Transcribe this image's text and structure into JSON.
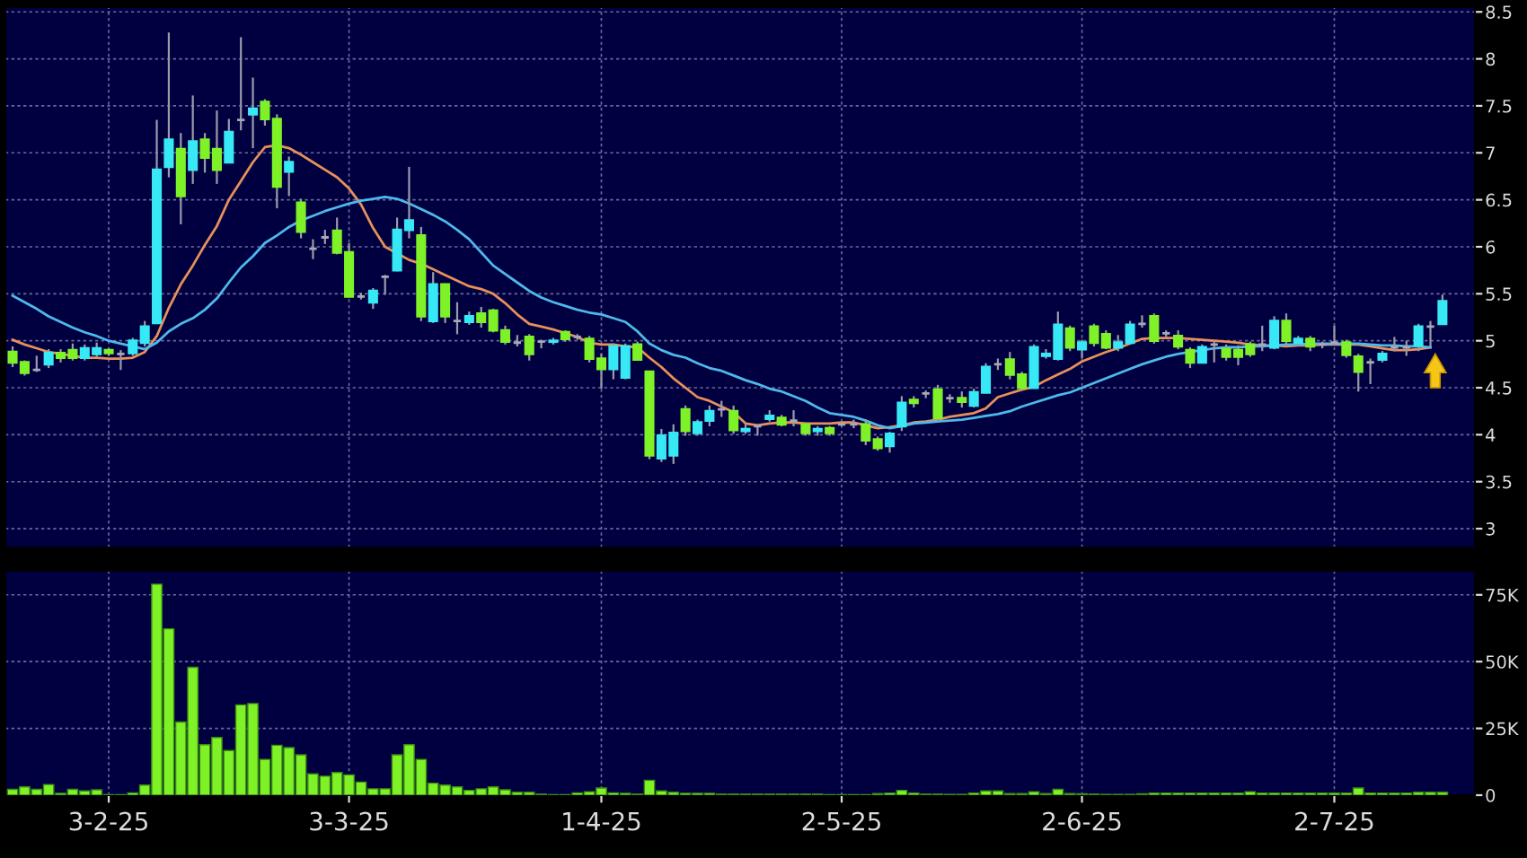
{
  "chart_data": [
    {
      "type": "candlestick",
      "categories": [
        null,
        null,
        null,
        null,
        null,
        null,
        null,
        null,
        null,
        null,
        null,
        null,
        null,
        null,
        null,
        null,
        null,
        null,
        null,
        null,
        null,
        null,
        null,
        null,
        null,
        null,
        null,
        null,
        null,
        null,
        null,
        null,
        null,
        null,
        null,
        null,
        null,
        null,
        null,
        null,
        null,
        null,
        null,
        null,
        null,
        null,
        null,
        null,
        null,
        null,
        null,
        null,
        null,
        null,
        null,
        null,
        null,
        null,
        null,
        null,
        null,
        null,
        null,
        null,
        null,
        null,
        null,
        null,
        null,
        null,
        null,
        null,
        null,
        null,
        null,
        null,
        null,
        null,
        null,
        null,
        null,
        null,
        null,
        null,
        null,
        null,
        null,
        null,
        null,
        null,
        null,
        null,
        null,
        null,
        null,
        null,
        null,
        null,
        null,
        null,
        null,
        null,
        null,
        null,
        null,
        null,
        null,
        null,
        null,
        null,
        null,
        null,
        null,
        null,
        null,
        null,
        null,
        null,
        null,
        null
      ],
      "series": [
        {
          "type": "candlestick",
          "ohlc": [
            [
              4.88,
              4.93,
              4.73,
              4.77
            ],
            [
              4.77,
              4.78,
              4.64,
              4.66
            ],
            [
              4.69,
              4.83,
              4.68,
              4.69
            ],
            [
              4.75,
              4.9,
              4.72,
              4.87
            ],
            [
              4.87,
              4.9,
              4.78,
              4.82
            ],
            [
              4.9,
              4.96,
              4.8,
              4.82
            ],
            [
              4.82,
              4.95,
              4.8,
              4.92
            ],
            [
              4.86,
              4.97,
              4.84,
              4.92
            ],
            [
              4.9,
              4.91,
              4.85,
              4.87
            ],
            [
              4.86,
              4.89,
              4.7,
              4.86
            ],
            [
              4.87,
              5.02,
              4.85,
              5.0
            ],
            [
              4.98,
              5.2,
              4.95,
              5.15
            ],
            [
              5.19,
              7.34,
              5.19,
              6.82
            ],
            [
              6.85,
              8.27,
              6.75,
              7.14
            ],
            [
              7.04,
              7.2,
              6.25,
              6.54
            ],
            [
              6.82,
              7.6,
              6.68,
              7.12
            ],
            [
              7.14,
              7.2,
              6.8,
              6.95
            ],
            [
              7.04,
              7.44,
              6.68,
              6.82
            ],
            [
              6.9,
              7.35,
              6.9,
              7.22
            ],
            [
              7.35,
              8.22,
              7.25,
              7.35
            ],
            [
              7.41,
              7.79,
              7.06,
              7.47
            ],
            [
              7.54,
              7.56,
              7.3,
              7.36
            ],
            [
              7.36,
              7.4,
              6.42,
              6.64
            ],
            [
              6.8,
              6.95,
              6.55,
              6.9
            ],
            [
              6.47,
              6.5,
              6.1,
              6.16
            ],
            [
              5.98,
              6.07,
              5.88,
              5.98
            ],
            [
              6.1,
              6.17,
              6.04,
              6.1
            ],
            [
              6.17,
              6.3,
              5.93,
              5.94
            ],
            [
              5.94,
              6.03,
              5.47,
              5.47
            ],
            [
              5.47,
              5.5,
              5.45,
              5.47
            ],
            [
              5.41,
              5.55,
              5.35,
              5.53
            ],
            [
              5.68,
              5.69,
              5.5,
              5.68
            ],
            [
              5.75,
              6.3,
              5.75,
              6.18
            ],
            [
              6.18,
              6.84,
              6.1,
              6.28
            ],
            [
              6.12,
              6.2,
              5.22,
              5.26
            ],
            [
              5.21,
              5.72,
              5.2,
              5.6
            ],
            [
              5.6,
              5.6,
              5.2,
              5.26
            ],
            [
              5.21,
              5.4,
              5.08,
              5.21
            ],
            [
              5.2,
              5.3,
              5.18,
              5.26
            ],
            [
              5.29,
              5.35,
              5.15,
              5.2
            ],
            [
              5.32,
              5.33,
              5.1,
              5.11
            ],
            [
              5.11,
              5.15,
              4.97,
              4.99
            ],
            [
              4.98,
              5.05,
              4.95,
              4.98
            ],
            [
              5.04,
              5.06,
              4.8,
              4.86
            ],
            [
              4.99,
              5.0,
              4.93,
              4.99
            ],
            [
              4.99,
              5.02,
              4.97,
              5.0
            ],
            [
              5.09,
              5.1,
              5.0,
              5.02
            ],
            [
              5.04,
              5.06,
              5.02,
              5.04
            ],
            [
              5.02,
              5.04,
              4.78,
              4.81
            ],
            [
              4.81,
              4.85,
              4.5,
              4.7
            ],
            [
              4.7,
              4.96,
              4.6,
              4.94
            ],
            [
              4.61,
              4.96,
              4.6,
              4.94
            ],
            [
              4.96,
              4.98,
              4.8,
              4.8
            ],
            [
              4.67,
              4.67,
              3.75,
              3.78
            ],
            [
              3.75,
              4.05,
              3.72,
              3.99
            ],
            [
              3.78,
              4.1,
              3.7,
              4.02
            ],
            [
              4.27,
              4.3,
              4.0,
              4.04
            ],
            [
              4.02,
              4.15,
              4.0,
              4.13
            ],
            [
              4.15,
              4.3,
              4.1,
              4.25
            ],
            [
              4.27,
              4.35,
              4.2,
              4.27
            ],
            [
              4.25,
              4.3,
              4.02,
              4.05
            ],
            [
              4.04,
              4.1,
              4.02,
              4.06
            ],
            [
              4.09,
              4.1,
              4.0,
              4.09
            ],
            [
              4.17,
              4.25,
              4.15,
              4.2
            ],
            [
              4.18,
              4.2,
              4.1,
              4.11
            ],
            [
              4.15,
              4.25,
              4.1,
              4.15
            ],
            [
              4.11,
              4.12,
              4.0,
              4.02
            ],
            [
              4.04,
              4.08,
              4.0,
              4.06
            ],
            [
              4.07,
              4.08,
              4.0,
              4.02
            ],
            [
              4.11,
              4.12,
              4.1,
              4.11
            ],
            [
              4.11,
              4.15,
              4.08,
              4.11
            ],
            [
              4.11,
              4.15,
              3.9,
              3.94
            ],
            [
              3.95,
              3.97,
              3.84,
              3.86
            ],
            [
              3.88,
              4.02,
              3.82,
              4.01
            ],
            [
              4.09,
              4.4,
              4.05,
              4.34
            ],
            [
              4.37,
              4.4,
              4.3,
              4.34
            ],
            [
              4.44,
              4.46,
              4.4,
              4.44
            ],
            [
              4.48,
              4.52,
              4.15,
              4.18
            ],
            [
              4.39,
              4.42,
              4.35,
              4.39
            ],
            [
              4.39,
              4.45,
              4.3,
              4.35
            ],
            [
              4.31,
              4.48,
              4.3,
              4.45
            ],
            [
              4.45,
              4.75,
              4.45,
              4.72
            ],
            [
              4.75,
              4.8,
              4.7,
              4.75
            ],
            [
              4.8,
              4.87,
              4.6,
              4.64
            ],
            [
              4.64,
              4.66,
              4.48,
              4.5
            ],
            [
              4.5,
              4.95,
              4.5,
              4.93
            ],
            [
              4.84,
              4.9,
              4.82,
              4.86
            ],
            [
              4.81,
              5.3,
              4.8,
              5.17
            ],
            [
              5.13,
              5.15,
              4.9,
              4.93
            ],
            [
              4.91,
              5.0,
              4.82,
              4.98
            ],
            [
              5.15,
              5.17,
              4.95,
              4.98
            ],
            [
              5.07,
              5.1,
              4.92,
              4.93
            ],
            [
              4.93,
              5.05,
              4.9,
              4.98
            ],
            [
              4.98,
              5.2,
              4.97,
              5.17
            ],
            [
              5.18,
              5.26,
              5.15,
              5.18
            ],
            [
              5.26,
              5.28,
              4.98,
              5.0
            ],
            [
              5.08,
              5.1,
              5.05,
              5.08
            ],
            [
              5.05,
              5.1,
              4.92,
              4.94
            ],
            [
              4.9,
              4.92,
              4.72,
              4.77
            ],
            [
              4.77,
              4.95,
              4.77,
              4.93
            ],
            [
              4.96,
              4.98,
              4.78,
              4.96
            ],
            [
              4.91,
              4.95,
              4.8,
              4.83
            ],
            [
              4.9,
              4.94,
              4.75,
              4.83
            ],
            [
              4.96,
              4.98,
              4.84,
              4.86
            ],
            [
              4.96,
              5.15,
              4.9,
              4.96
            ],
            [
              4.93,
              5.25,
              4.92,
              5.21
            ],
            [
              5.21,
              5.28,
              4.95,
              5.0
            ],
            [
              4.98,
              5.04,
              4.95,
              5.02
            ],
            [
              5.02,
              5.04,
              4.9,
              4.94
            ],
            [
              4.96,
              4.98,
              4.93,
              4.96
            ],
            [
              4.98,
              5.15,
              4.96,
              4.98
            ],
            [
              4.98,
              5.0,
              4.83,
              4.85
            ],
            [
              4.83,
              4.85,
              4.47,
              4.67
            ],
            [
              4.77,
              4.8,
              4.55,
              4.77
            ],
            [
              4.8,
              4.88,
              4.78,
              4.86
            ],
            [
              4.93,
              5.03,
              4.9,
              4.93
            ],
            [
              4.93,
              4.99,
              4.85,
              4.93
            ],
            [
              4.95,
              5.17,
              4.9,
              5.15
            ],
            [
              5.15,
              5.2,
              4.95,
              5.15
            ],
            [
              5.18,
              5.48,
              5.18,
              5.42
            ]
          ],
          "colors": [
            "#7ef227",
            "#7ef227",
            "#a8a8b8",
            "#37e8f5",
            "#7ef227",
            "#7ef227",
            "#37e8f5",
            "#37e8f5",
            "#7ef227",
            "#a8a8b8",
            "#37e8f5",
            "#37e8f5",
            "#37e8f5",
            "#37e8f5",
            "#7ef227",
            "#37e8f5",
            "#7ef227",
            "#7ef227",
            "#37e8f5",
            "#a8a8b8",
            "#37e8f5",
            "#7ef227",
            "#7ef227",
            "#37e8f5",
            "#7ef227",
            "#a8a8b8",
            "#a8a8b8",
            "#7ef227",
            "#7ef227",
            "#a8a8b8",
            "#37e8f5",
            "#a8a8b8",
            "#37e8f5",
            "#37e8f5",
            "#7ef227",
            "#37e8f5",
            "#7ef227",
            "#a8a8b8",
            "#37e8f5",
            "#7ef227",
            "#7ef227",
            "#7ef227",
            "#a8a8b8",
            "#7ef227",
            "#a8a8b8",
            "#37e8f5",
            "#7ef227",
            "#a8a8b8",
            "#7ef227",
            "#7ef227",
            "#37e8f5",
            "#37e8f5",
            "#7ef227",
            "#7ef227",
            "#37e8f5",
            "#37e8f5",
            "#7ef227",
            "#37e8f5",
            "#37e8f5",
            "#a8a8b8",
            "#7ef227",
            "#37e8f5",
            "#a8a8b8",
            "#37e8f5",
            "#7ef227",
            "#a8a8b8",
            "#7ef227",
            "#37e8f5",
            "#7ef227",
            "#a8a8b8",
            "#a8a8b8",
            "#7ef227",
            "#7ef227",
            "#37e8f5",
            "#37e8f5",
            "#7ef227",
            "#a8a8b8",
            "#7ef227",
            "#a8a8b8",
            "#7ef227",
            "#37e8f5",
            "#37e8f5",
            "#a8a8b8",
            "#7ef227",
            "#7ef227",
            "#37e8f5",
            "#37e8f5",
            "#37e8f5",
            "#7ef227",
            "#37e8f5",
            "#7ef227",
            "#7ef227",
            "#37e8f5",
            "#37e8f5",
            "#a8a8b8",
            "#7ef227",
            "#a8a8b8",
            "#7ef227",
            "#7ef227",
            "#37e8f5",
            "#a8a8b8",
            "#7ef227",
            "#7ef227",
            "#7ef227",
            "#a8a8b8",
            "#37e8f5",
            "#7ef227",
            "#37e8f5",
            "#7ef227",
            "#a8a8b8",
            "#a8a8b8",
            "#7ef227",
            "#7ef227",
            "#a8a8b8",
            "#37e8f5",
            "#a8a8b8",
            "#a8a8b8",
            "#37e8f5",
            "#a8a8b8",
            "#37e8f5"
          ]
        },
        {
          "type": "line",
          "color": "#e8905a",
          "values": [
            5.01,
            4.96,
            4.92,
            4.88,
            4.86,
            4.84,
            4.82,
            4.82,
            4.81,
            4.81,
            4.82,
            4.88,
            5.05,
            5.35,
            5.6,
            5.8,
            6.02,
            6.22,
            6.5,
            6.7,
            6.9,
            7.06,
            7.08,
            7.05,
            6.98,
            6.9,
            6.82,
            6.74,
            6.62,
            6.45,
            6.2,
            6.0,
            5.93,
            5.86,
            5.82,
            5.76,
            5.7,
            5.64,
            5.58,
            5.55,
            5.5,
            5.4,
            5.28,
            5.18,
            5.15,
            5.12,
            5.08,
            5.04,
            4.98,
            4.96,
            4.96,
            4.94,
            4.93,
            4.82,
            4.72,
            4.6,
            4.5,
            4.4,
            4.36,
            4.3,
            4.24,
            4.12,
            4.1,
            4.12,
            4.13,
            4.13,
            4.12,
            4.12,
            4.12,
            4.13,
            4.13,
            4.1,
            4.07,
            4.08,
            4.1,
            4.13,
            4.14,
            4.16,
            4.19,
            4.21,
            4.23,
            4.28,
            4.4,
            4.44,
            4.48,
            4.51,
            4.58,
            4.64,
            4.7,
            4.78,
            4.83,
            4.88,
            4.92,
            4.97,
            5.02,
            5.03,
            5.03,
            5.03,
            5.02,
            5.01,
            5.0,
            4.99,
            4.98,
            4.96,
            4.95,
            4.95,
            4.94,
            4.95,
            4.95,
            4.96,
            4.96,
            4.96,
            4.96,
            4.94,
            4.92,
            4.9,
            4.9,
            4.91,
            4.93,
            null
          ]
        },
        {
          "type": "line",
          "color": "#4fb8ea",
          "values": [
            5.48,
            5.41,
            5.34,
            5.26,
            5.2,
            5.14,
            5.09,
            5.05,
            5.0,
            4.97,
            4.94,
            4.91,
            4.98,
            5.1,
            5.18,
            5.24,
            5.33,
            5.45,
            5.62,
            5.78,
            5.9,
            6.04,
            6.12,
            6.21,
            6.28,
            6.33,
            6.38,
            6.42,
            6.46,
            6.49,
            6.51,
            6.53,
            6.51,
            6.46,
            6.4,
            6.34,
            6.27,
            6.18,
            6.08,
            5.94,
            5.8,
            5.71,
            5.62,
            5.53,
            5.46,
            5.41,
            5.37,
            5.33,
            5.3,
            5.28,
            5.24,
            5.2,
            5.1,
            4.97,
            4.9,
            4.85,
            4.82,
            4.76,
            4.71,
            4.68,
            4.63,
            4.58,
            4.54,
            4.49,
            4.46,
            4.41,
            4.36,
            4.29,
            4.23,
            4.21,
            4.19,
            4.15,
            4.1,
            4.07,
            4.09,
            4.12,
            4.13,
            4.14,
            4.15,
            4.16,
            4.18,
            4.2,
            4.22,
            4.25,
            4.3,
            4.34,
            4.38,
            4.42,
            4.45,
            4.5,
            4.55,
            4.6,
            4.65,
            4.7,
            4.75,
            4.79,
            4.83,
            4.86,
            4.88,
            4.9,
            4.92,
            4.93,
            4.93,
            4.94,
            4.94,
            4.95,
            4.96,
            4.96,
            4.97,
            4.97,
            4.97,
            4.97,
            4.97,
            4.96,
            4.95,
            4.95,
            4.94,
            4.94,
            4.93,
            null
          ]
        }
      ],
      "ylim": [
        2.8,
        8.55
      ],
      "yticks": [
        3,
        3.5,
        4,
        4.5,
        5,
        5.5,
        6,
        6.5,
        7,
        7.5,
        8,
        8.5
      ],
      "grid": true,
      "tick_labels": "y"
    },
    {
      "type": "bar",
      "categories": [
        null,
        null,
        null,
        null,
        null,
        null,
        null,
        null,
        "3-2-25",
        null,
        null,
        null,
        null,
        null,
        null,
        null,
        null,
        null,
        null,
        null,
        null,
        null,
        null,
        null,
        null,
        null,
        null,
        null,
        "3-3-25",
        null,
        null,
        null,
        null,
        null,
        null,
        null,
        null,
        null,
        null,
        null,
        null,
        null,
        null,
        null,
        null,
        null,
        null,
        null,
        null,
        "1-4-25",
        null,
        null,
        null,
        null,
        null,
        null,
        null,
        null,
        null,
        null,
        null,
        null,
        null,
        null,
        null,
        null,
        null,
        null,
        null,
        "2-5-25",
        null,
        null,
        null,
        null,
        null,
        null,
        null,
        null,
        null,
        null,
        null,
        null,
        null,
        null,
        null,
        null,
        null,
        null,
        null,
        "2-6-25",
        null,
        null,
        null,
        null,
        null,
        null,
        null,
        null,
        null,
        null,
        null,
        null,
        null,
        null,
        null,
        null,
        null,
        null,
        null,
        null,
        "2-7-25",
        null,
        null,
        null,
        null,
        null,
        null,
        null,
        null,
        null
      ],
      "values": [
        2.2,
        3.1,
        2.2,
        4.0,
        0.7,
        2.2,
        1.6,
        2.0,
        0.2,
        0.2,
        0.9,
        3.8,
        79,
        62.3,
        27.4,
        47.9,
        18.9,
        21.6,
        16.7,
        33.8,
        34.3,
        13.4,
        18.7,
        17.8,
        15.1,
        8.0,
        7.1,
        8.5,
        7.6,
        4.9,
        2.4,
        2.4,
        15.1,
        18.9,
        13.4,
        4.5,
        3.8,
        3.1,
        1.8,
        2.4,
        3.1,
        2.0,
        1.1,
        1.1,
        0.4,
        0.2,
        0.2,
        0.9,
        1.3,
        2.7,
        0.9,
        0.7,
        0.4,
        5.6,
        1.6,
        1.1,
        0.7,
        0.7,
        0.7,
        0.4,
        0.4,
        0.4,
        0.4,
        0.4,
        0.4,
        0.4,
        0.4,
        0.4,
        0.2,
        0.2,
        0.2,
        0.2,
        0.6,
        0.8,
        1.8,
        0.8,
        0.4,
        0.4,
        0.3,
        0.3,
        0.8,
        1.6,
        1.6,
        0.6,
        0.6,
        1.3,
        0.6,
        2.2,
        0.6,
        0.5,
        0.4,
        0.3,
        0.3,
        0.3,
        0.5,
        0.8,
        0.8,
        0.8,
        0.8,
        0.8,
        0.8,
        0.8,
        0.8,
        1.3,
        0.8,
        0.8,
        0.8,
        0.8,
        0.8,
        0.8,
        0.8,
        0.8,
        2.7,
        0.8,
        0.8,
        0.8,
        0.8,
        1.1,
        1.1,
        1.1
      ],
      "color": "#7ef227",
      "ylim": [
        0,
        84
      ],
      "yticks": [
        {
          "value": 0,
          "label": "0"
        },
        {
          "value": 25,
          "label": "25K"
        },
        {
          "value": 50,
          "label": "50K"
        },
        {
          "value": 75,
          "label": "75K"
        }
      ],
      "grid": true
    }
  ]
}
